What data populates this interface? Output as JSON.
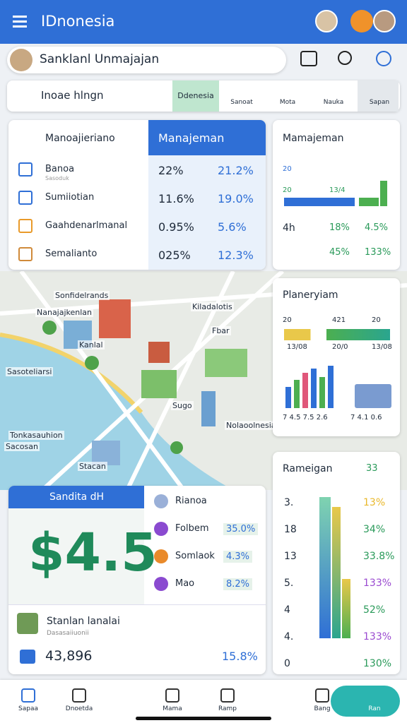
{
  "header": {
    "title": "IDnonesia"
  },
  "search": {
    "text": "Sanklanl Unmajajan"
  },
  "filter": {
    "label": "Inoae hlngn",
    "tabs": [
      "Ddenesia",
      "Sanoat",
      "Mota",
      "Nauka",
      "Sapan"
    ]
  },
  "stats": {
    "title": "Manoajieriano",
    "header": "Manajeman",
    "rows": [
      {
        "label": "Banoa",
        "sub": "Sasoduk",
        "v1": "22%",
        "v2": "21.2%"
      },
      {
        "label": "Sumiiotian",
        "v1": "11.6%",
        "v2": "19.0%"
      },
      {
        "label": "Gaahdenarlmanal",
        "v1": "0.95%",
        "v2": "5.6%"
      },
      {
        "label": "Semalianto",
        "v1": "025%",
        "v2": "12.3%"
      }
    ]
  },
  "card1": {
    "title": "Mamajeman",
    "labels": [
      "20",
      "20",
      "13/4"
    ],
    "rows": [
      [
        "4h",
        "18%",
        "4.5%"
      ],
      [
        "45%",
        "133%"
      ]
    ]
  },
  "card2": {
    "title": "Planeryiam",
    "top": [
      "20",
      "421",
      "20"
    ],
    "mid": [
      "13/08",
      "20/0",
      "13/08"
    ],
    "bottom": [
      "7 4.5 7.5 2.6",
      "7 4.1 0.6"
    ]
  },
  "map": {
    "labels": [
      "Sonfidelrands",
      "Nanajajkenlan",
      "Kiladalotis",
      "Kanlal",
      "Fbar",
      "Sasoteliarsi",
      "Sugo",
      "Nolaoolnesia",
      "Sacosan",
      "Tonkasauhion",
      "Stacan"
    ]
  },
  "wallet": {
    "title": "Sandita dH",
    "amount": "$4.5",
    "items": [
      {
        "name": "Rianoa"
      },
      {
        "name": "Folbem",
        "value": "35.0%"
      },
      {
        "name": "Somlaok",
        "value": "4.3%"
      },
      {
        "name": "Mao",
        "value": "8.2%"
      }
    ],
    "user": {
      "name": "Stanlan lanalai",
      "sub": "Dasasaiiuonii",
      "total": "43,896",
      "change": "15.8%"
    }
  },
  "card3": {
    "title": "Rameigan",
    "badge": "33",
    "axis": [
      "3.",
      "18",
      "13",
      "5.",
      "4",
      "4.",
      "0"
    ],
    "values": [
      "13%",
      "34%",
      "33.8%",
      "133%",
      "52%",
      "133%",
      "130%"
    ]
  },
  "nav": [
    "Sapaa",
    "Dnoetda",
    "Mama",
    "Ramp",
    "Bang",
    "Ran"
  ]
}
